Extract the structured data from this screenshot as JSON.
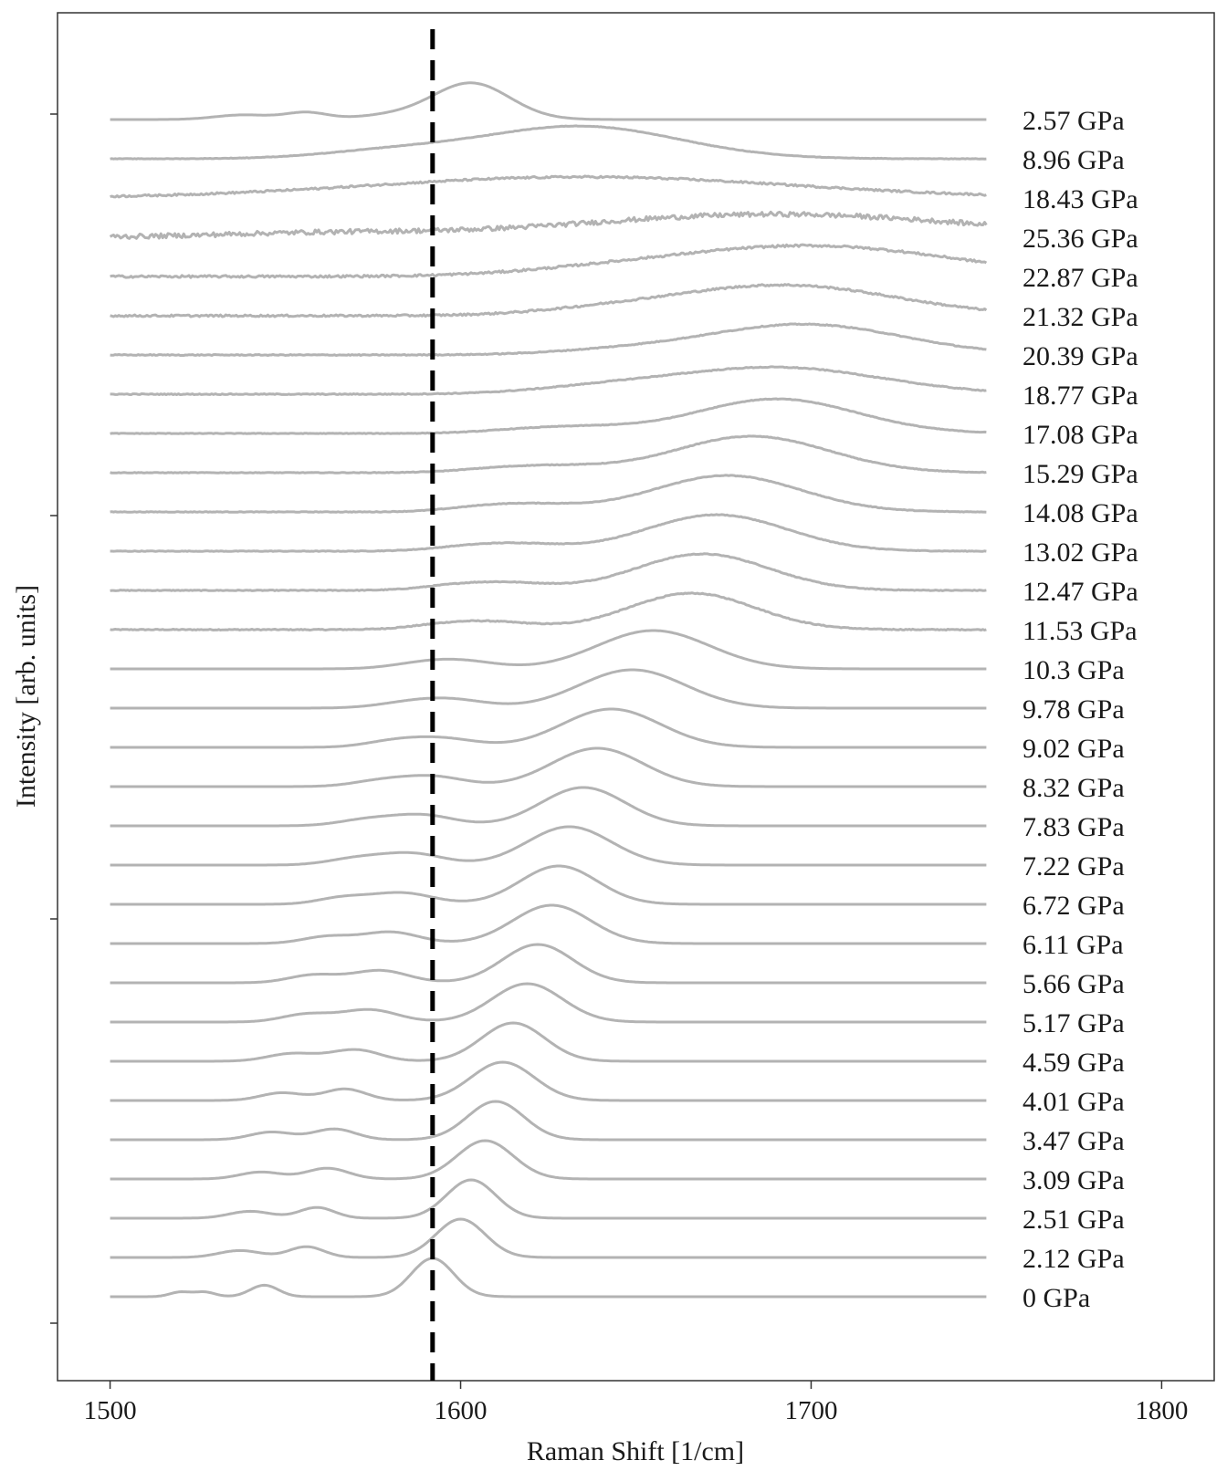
{
  "chart_data": {
    "type": "line",
    "title": "",
    "xlabel": "Raman Shift [1/cm]",
    "ylabel": "Intensity [arb. units]",
    "xlim": [
      1485,
      1815
    ],
    "x_ticks": [
      "1500",
      "1600",
      "1700",
      "1800"
    ],
    "x_tick_values": [
      1500,
      1600,
      1700,
      1800
    ],
    "x_range": [
      1500,
      1750
    ],
    "reference_line": {
      "x": 1592,
      "style": "dashed",
      "color": "#000000"
    },
    "line_color": "#b3b3b3",
    "grid": false,
    "legend": "none",
    "series": [
      {
        "name": "0 GPa",
        "peak": 1592,
        "height": 1.0,
        "width": 6,
        "bg": [
          {
            "c": 1520,
            "h": 0.12,
            "w": 3
          },
          {
            "c": 1527,
            "h": 0.12,
            "w": 3
          },
          {
            "c": 1544,
            "h": 0.3,
            "w": 4
          }
        ],
        "noise": 0
      },
      {
        "name": "2.12 GPa",
        "peak": 1600,
        "height": 1.0,
        "width": 7,
        "bg": [
          {
            "c": 1537,
            "h": 0.18,
            "w": 6
          },
          {
            "c": 1556,
            "h": 0.28,
            "w": 5
          }
        ],
        "noise": 0
      },
      {
        "name": "2.51 GPa",
        "peak": 1603,
        "height": 1.0,
        "width": 7,
        "bg": [
          {
            "c": 1540,
            "h": 0.18,
            "w": 6
          },
          {
            "c": 1559,
            "h": 0.28,
            "w": 5
          }
        ],
        "noise": 0
      },
      {
        "name": "3.09 GPa",
        "peak": 1607,
        "height": 1.0,
        "width": 8,
        "bg": [
          {
            "c": 1543,
            "h": 0.18,
            "w": 6
          },
          {
            "c": 1562,
            "h": 0.28,
            "w": 6
          }
        ],
        "noise": 0
      },
      {
        "name": "3.47 GPa",
        "peak": 1610,
        "height": 1.0,
        "width": 8,
        "bg": [
          {
            "c": 1546,
            "h": 0.2,
            "w": 6
          },
          {
            "c": 1564,
            "h": 0.28,
            "w": 6
          }
        ],
        "noise": 0
      },
      {
        "name": "4.01 GPa",
        "peak": 1612,
        "height": 1.0,
        "width": 9,
        "bg": [
          {
            "c": 1549,
            "h": 0.2,
            "w": 6
          },
          {
            "c": 1567,
            "h": 0.3,
            "w": 6
          }
        ],
        "noise": 0
      },
      {
        "name": "4.59 GPa",
        "peak": 1615,
        "height": 1.0,
        "width": 9,
        "bg": [
          {
            "c": 1552,
            "h": 0.2,
            "w": 7
          },
          {
            "c": 1570,
            "h": 0.3,
            "w": 7
          }
        ],
        "noise": 0
      },
      {
        "name": "5.17 GPa",
        "peak": 1619,
        "height": 1.0,
        "width": 10,
        "bg": [
          {
            "c": 1556,
            "h": 0.2,
            "w": 7
          },
          {
            "c": 1574,
            "h": 0.32,
            "w": 8
          }
        ],
        "noise": 0
      },
      {
        "name": "5.66 GPa",
        "peak": 1622,
        "height": 1.0,
        "width": 10,
        "bg": [
          {
            "c": 1558,
            "h": 0.2,
            "w": 7
          },
          {
            "c": 1577,
            "h": 0.32,
            "w": 8
          }
        ],
        "noise": 0
      },
      {
        "name": "6.11 GPa",
        "peak": 1626,
        "height": 1.0,
        "width": 11,
        "bg": [
          {
            "c": 1562,
            "h": 0.18,
            "w": 7
          },
          {
            "c": 1580,
            "h": 0.3,
            "w": 8
          }
        ],
        "noise": 0
      },
      {
        "name": "6.72 GPa",
        "peak": 1628,
        "height": 1.0,
        "width": 11,
        "bg": [
          {
            "c": 1566,
            "h": 0.16,
            "w": 7
          },
          {
            "c": 1583,
            "h": 0.3,
            "w": 9
          }
        ],
        "noise": 0
      },
      {
        "name": "7.22 GPa",
        "peak": 1631,
        "height": 1.0,
        "width": 12,
        "bg": [
          {
            "c": 1570,
            "h": 0.16,
            "w": 8
          },
          {
            "c": 1586,
            "h": 0.3,
            "w": 9
          }
        ],
        "noise": 0
      },
      {
        "name": "7.83 GPa",
        "peak": 1635,
        "height": 1.0,
        "width": 12,
        "bg": [
          {
            "c": 1573,
            "h": 0.15,
            "w": 8
          },
          {
            "c": 1589,
            "h": 0.28,
            "w": 9
          }
        ],
        "noise": 0
      },
      {
        "name": "8.32 GPa",
        "peak": 1639,
        "height": 1.0,
        "width": 13,
        "bg": [
          {
            "c": 1577,
            "h": 0.14,
            "w": 8
          },
          {
            "c": 1592,
            "h": 0.26,
            "w": 9
          }
        ],
        "noise": 0
      },
      {
        "name": "9.02 GPa",
        "peak": 1643,
        "height": 1.0,
        "width": 14,
        "bg": [
          {
            "c": 1580,
            "h": 0.12,
            "w": 8
          },
          {
            "c": 1594,
            "h": 0.24,
            "w": 10
          }
        ],
        "noise": 0
      },
      {
        "name": "9.78 GPa",
        "peak": 1649,
        "height": 1.0,
        "width": 15,
        "bg": [
          {
            "c": 1584,
            "h": 0.1,
            "w": 9
          },
          {
            "c": 1597,
            "h": 0.22,
            "w": 10
          }
        ],
        "noise": 0
      },
      {
        "name": "10.3 GPa",
        "peak": 1655,
        "height": 1.0,
        "width": 16,
        "bg": [
          {
            "c": 1588,
            "h": 0.1,
            "w": 9
          },
          {
            "c": 1600,
            "h": 0.2,
            "w": 10
          }
        ],
        "noise": 0
      },
      {
        "name": "11.53 GPa",
        "peak": 1666,
        "height": 0.95,
        "width": 18,
        "bg": [
          {
            "c": 1595,
            "h": 0.1,
            "w": 10
          },
          {
            "c": 1610,
            "h": 0.18,
            "w": 12
          }
        ],
        "noise": 0.006
      },
      {
        "name": "12.47 GPa",
        "peak": 1669,
        "height": 0.95,
        "width": 19,
        "bg": [
          {
            "c": 1598,
            "h": 0.1,
            "w": 10
          },
          {
            "c": 1614,
            "h": 0.18,
            "w": 12
          }
        ],
        "noise": 0.005
      },
      {
        "name": "13.02 GPa",
        "peak": 1673,
        "height": 0.95,
        "width": 20,
        "bg": [
          {
            "c": 1602,
            "h": 0.1,
            "w": 11
          },
          {
            "c": 1618,
            "h": 0.16,
            "w": 12
          }
        ],
        "noise": 0.004
      },
      {
        "name": "14.08 GPa",
        "peak": 1676,
        "height": 0.95,
        "width": 21,
        "bg": [
          {
            "c": 1606,
            "h": 0.1,
            "w": 11
          },
          {
            "c": 1622,
            "h": 0.16,
            "w": 13
          }
        ],
        "noise": 0.004
      },
      {
        "name": "15.29 GPa",
        "peak": 1683,
        "height": 0.95,
        "width": 22,
        "bg": [
          {
            "c": 1610,
            "h": 0.08,
            "w": 12
          },
          {
            "c": 1628,
            "h": 0.14,
            "w": 14
          }
        ],
        "noise": 0.004
      },
      {
        "name": "17.08 GPa",
        "peak": 1690,
        "height": 0.9,
        "width": 23,
        "bg": [
          {
            "c": 1618,
            "h": 0.08,
            "w": 13
          },
          {
            "c": 1636,
            "h": 0.12,
            "w": 14
          }
        ],
        "noise": 0.004
      },
      {
        "name": "18.77 GPa",
        "peak": 1690,
        "height": 0.7,
        "width": 30,
        "bg": [
          {
            "c": 1640,
            "h": 0.14,
            "w": 20
          }
        ],
        "noise": 0.006
      },
      {
        "name": "20.39 GPa",
        "peak": 1698,
        "height": 0.8,
        "width": 28,
        "bg": [
          {
            "c": 1645,
            "h": 0.1,
            "w": 20
          }
        ],
        "noise": 0.006
      },
      {
        "name": "21.32 GPa",
        "peak": 1692,
        "height": 0.8,
        "width": 32,
        "bg": [
          {
            "c": 1640,
            "h": 0.1,
            "w": 20
          }
        ],
        "noise": 0.012
      },
      {
        "name": "22.87 GPa",
        "peak": 1700,
        "height": 0.8,
        "width": 40,
        "bg": [
          {
            "c": 1640,
            "h": 0.1,
            "w": 25
          }
        ],
        "noise": 0.014
      },
      {
        "name": "25.36 GPa",
        "peak": 1690,
        "height": 0.6,
        "width": 55,
        "bg": [
          {
            "c": 1560,
            "h": 0.1,
            "w": 30
          }
        ],
        "noise": 0.03
      },
      {
        "name": "18.43 GPa",
        "peak": 1635,
        "height": 0.55,
        "width": 60,
        "bg": [],
        "noise": 0.012
      },
      {
        "name": "8.96 GPa",
        "peak": 1634,
        "height": 0.85,
        "width": 28,
        "bg": [
          {
            "c": 1580,
            "h": 0.18,
            "w": 20
          }
        ],
        "noise": 0.003
      },
      {
        "name": "2.57 GPa",
        "peak": 1603,
        "height": 0.95,
        "width": 11,
        "bg": [
          {
            "c": 1538,
            "h": 0.12,
            "w": 8
          },
          {
            "c": 1556,
            "h": 0.18,
            "w": 6
          },
          {
            "c": 1580,
            "h": 0.1,
            "w": 10
          }
        ],
        "noise": 0
      }
    ]
  }
}
